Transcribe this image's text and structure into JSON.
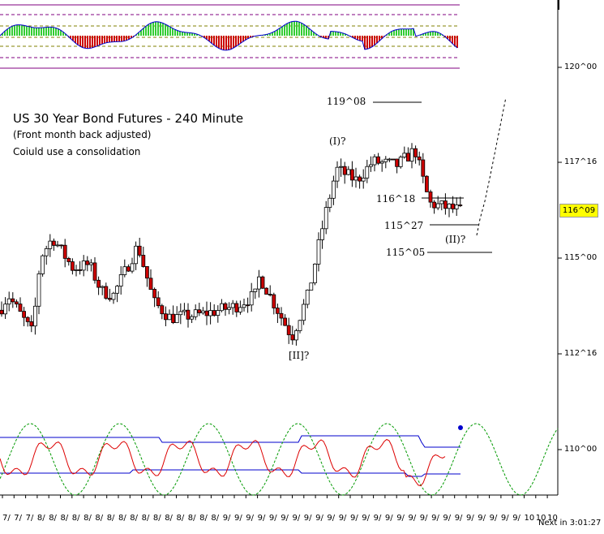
{
  "chart_data": {
    "type": "candlestick",
    "title": "US 30 Year Bond Futures - 240 Minute",
    "subtitle": "(Front month back adjusted)",
    "note": "Coiuld use a consolidation",
    "y_axis_labels": [
      "120^00",
      "117^16",
      "115^00",
      "112^16",
      "110^00"
    ],
    "current_price": "116^09",
    "levels": [
      {
        "label": "119^08"
      },
      {
        "label": "116^18"
      },
      {
        "label": "115^27"
      },
      {
        "label": "115^05"
      }
    ],
    "wave_labels": [
      "(I)?",
      "(II)?",
      "[II]?"
    ],
    "x_tick_labels": [
      "7/",
      "7/",
      "7/",
      "8/",
      "8/",
      "8/",
      "8/",
      "8/",
      "8/",
      "8/",
      "8/",
      "8/",
      "8/",
      "8/",
      "8/",
      "8/",
      "8/",
      "8/",
      "8/",
      "9/",
      "9/",
      "9/",
      "9/",
      "9/",
      "9/",
      "9/",
      "9/",
      "9/",
      "9/",
      "9/",
      "9/",
      "9/",
      "9/",
      "9/",
      "9/",
      "9/",
      "9/",
      "9/",
      "9/",
      "9/",
      "9/",
      "9/",
      "9/",
      "9/",
      "9/",
      "10",
      "10",
      "10"
    ],
    "status_text": "Next in 3:01:27",
    "colors": {
      "up_candle": "#ffffff",
      "down_candle": "#cc0000",
      "histogram_up": "#33cc33",
      "histogram_down": "#cc0000",
      "indicator_line": "#0000cc",
      "cycle_line": "#009900",
      "osc_line": "#dd0000",
      "level_line": "#800080"
    }
  }
}
